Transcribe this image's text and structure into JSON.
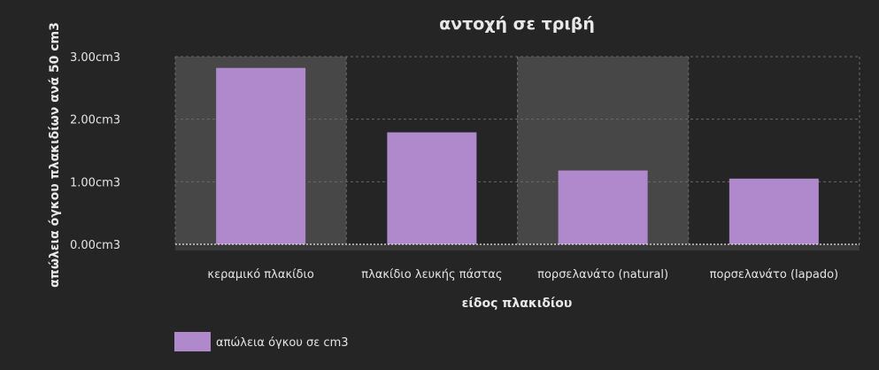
{
  "chart_data": {
    "type": "bar",
    "title": "αντοχή σε τριβή",
    "xlabel": "είδος πλακιδίου",
    "ylabel": "απώλεια όγκου πλακιδίων ανά 50 cm3",
    "categories": [
      "κεραμικό πλακίδιο",
      "πλακίδιο λευκής πάστας",
      "πορσελανάτο (natural)",
      "πορσελανάτο (lapado)"
    ],
    "series": [
      {
        "name": "απώλεια όγκου σε cm3",
        "values": [
          2.82,
          1.79,
          1.18,
          1.05
        ],
        "color": "#b088cc"
      }
    ],
    "ylim": [
      0,
      3
    ],
    "yticks": [
      0,
      1,
      2,
      3
    ],
    "ytick_labels": [
      "0.00cm3",
      "1.00cm3",
      "2.00cm3",
      "3.00cm3"
    ],
    "grid": true,
    "legend_position": "bottom-left",
    "colors": {
      "background": "#252525",
      "band": "#474747",
      "bar": "#b088cc"
    }
  }
}
